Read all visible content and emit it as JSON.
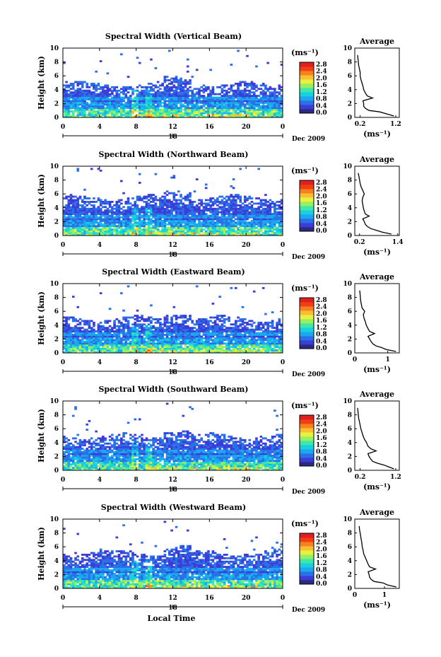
{
  "figure": {
    "date_label": "Dec 2009",
    "xlabel_bottom": "Local Time",
    "colorbar_unit": "(ms⁻¹)",
    "colorbar_ticks": [
      "0.0",
      "0.4",
      "0.8",
      "1.2",
      "1.6",
      "2.0",
      "2.4",
      "2.8"
    ],
    "colorbar_colors": [
      "#2a2a80",
      "#3c3cd8",
      "#2a70e6",
      "#1aa8f0",
      "#18d0e0",
      "#3ee8a8",
      "#98f060",
      "#e8f040",
      "#f8c030",
      "#f88020",
      "#f04010",
      "#e02020"
    ],
    "avg_title": "Average",
    "avg_xlabel": "(ms⁻¹)",
    "colors": {
      "background": "#ffffff",
      "low": "#3c3cd8",
      "mid": "#18d0e0",
      "high": "#f8c030"
    }
  },
  "chart_data": [
    {
      "type": "heatmap",
      "title": "Spectral Width (Vertical Beam)",
      "xlabel": "Local Time",
      "ylabel": "Height (km)",
      "xlim": [
        0,
        24
      ],
      "ylim": [
        0,
        10
      ],
      "xticks": [
        "0",
        "4",
        "8",
        "12",
        "16",
        "20",
        "0"
      ],
      "day_label": "18",
      "yticks": [
        "0",
        "2",
        "4",
        "6",
        "8",
        "10"
      ],
      "value_range": [
        0.0,
        2.8
      ],
      "echo_top_km": 4.8,
      "average_profile": {
        "xticks": [
          "0.2",
          "1.2"
        ],
        "xlim": [
          0.05,
          1.3
        ],
        "height_km": [
          0.2,
          0.5,
          0.8,
          1.0,
          1.3,
          1.6,
          2.0,
          2.4,
          2.8,
          3.1,
          3.5,
          4.0,
          4.5,
          5.0,
          5.5,
          6.0,
          6.5,
          7.0,
          7.5,
          8.0,
          8.5,
          9.0
        ],
        "width": [
          1.15,
          0.95,
          0.75,
          0.45,
          0.35,
          0.3,
          0.3,
          0.28,
          0.55,
          0.4,
          0.35,
          0.3,
          0.28,
          0.25,
          0.22,
          0.2,
          0.2,
          0.18,
          0.16,
          0.15,
          0.14,
          0.13
        ]
      }
    },
    {
      "type": "heatmap",
      "title": "Spectral Width (Northward Beam)",
      "xlabel": "Local Time",
      "ylabel": "Height (km)",
      "xlim": [
        0,
        24
      ],
      "ylim": [
        0,
        10
      ],
      "xticks": [
        "0",
        "4",
        "8",
        "12",
        "16",
        "20",
        "0"
      ],
      "day_label": "18",
      "yticks": [
        "0",
        "2",
        "4",
        "6",
        "8",
        "10"
      ],
      "value_range": [
        0.0,
        2.8
      ],
      "echo_top_km": 5.5,
      "average_profile": {
        "xticks": [
          "0.2",
          "1.4"
        ],
        "xlim": [
          0.05,
          1.45
        ],
        "height_km": [
          0.2,
          0.5,
          0.8,
          1.0,
          1.3,
          1.6,
          2.0,
          2.4,
          2.8,
          3.1,
          3.5,
          4.0,
          4.5,
          5.0,
          5.5,
          6.0,
          6.5,
          7.0,
          7.5,
          8.0,
          8.5,
          9.0
        ],
        "width": [
          1.2,
          0.9,
          0.7,
          0.55,
          0.45,
          0.38,
          0.35,
          0.3,
          0.5,
          0.38,
          0.35,
          0.32,
          0.3,
          0.28,
          0.3,
          0.35,
          0.3,
          0.25,
          0.22,
          0.2,
          0.18,
          0.16
        ]
      }
    },
    {
      "type": "heatmap",
      "title": "Spectral Width (Eastward Beam)",
      "xlabel": "Local Time",
      "ylabel": "Height (km)",
      "xlim": [
        0,
        24
      ],
      "ylim": [
        0,
        10
      ],
      "xticks": [
        "0",
        "4",
        "8",
        "12",
        "16",
        "20",
        "0"
      ],
      "day_label": "18",
      "yticks": [
        "0",
        "2",
        "4",
        "6",
        "8",
        "10"
      ],
      "value_range": [
        0.0,
        2.8
      ],
      "echo_top_km": 5.0,
      "average_profile": {
        "xticks": [
          "0",
          "1"
        ],
        "xlim": [
          0.0,
          1.35
        ],
        "height_km": [
          0.2,
          0.5,
          0.8,
          1.0,
          1.3,
          1.6,
          2.0,
          2.4,
          2.8,
          3.1,
          3.5,
          4.0,
          4.5,
          5.0,
          5.5,
          6.0,
          6.5,
          7.0,
          7.5,
          8.0,
          8.5,
          9.0
        ],
        "width": [
          1.25,
          0.95,
          0.8,
          0.65,
          0.55,
          0.5,
          0.45,
          0.4,
          0.6,
          0.45,
          0.4,
          0.35,
          0.32,
          0.28,
          0.26,
          0.3,
          0.22,
          0.2,
          0.18,
          0.17,
          0.16,
          0.15
        ]
      }
    },
    {
      "type": "heatmap",
      "title": "Spectral Width (Southward Beam)",
      "xlabel": "Local Time",
      "ylabel": "Height (km)",
      "xlim": [
        0,
        24
      ],
      "ylim": [
        0,
        10
      ],
      "xticks": [
        "0",
        "4",
        "8",
        "12",
        "16",
        "20",
        "0"
      ],
      "day_label": "18",
      "yticks": [
        "0",
        "2",
        "4",
        "6",
        "8",
        "10"
      ],
      "value_range": [
        0.0,
        2.8
      ],
      "echo_top_km": 5.0,
      "average_profile": {
        "xticks": [
          "0.2",
          "1.2"
        ],
        "xlim": [
          0.05,
          1.3
        ],
        "height_km": [
          0.2,
          0.5,
          0.8,
          1.0,
          1.3,
          1.6,
          2.0,
          2.4,
          2.8,
          3.1,
          3.5,
          4.0,
          4.5,
          5.0,
          5.5,
          6.0,
          6.5,
          7.0,
          7.5,
          8.0,
          8.5,
          9.0
        ],
        "width": [
          1.15,
          1.0,
          0.85,
          0.7,
          0.55,
          0.5,
          0.45,
          0.42,
          0.65,
          0.5,
          0.42,
          0.38,
          0.32,
          0.28,
          0.25,
          0.22,
          0.2,
          0.18,
          0.16,
          0.15,
          0.14,
          0.13
        ]
      }
    },
    {
      "type": "heatmap",
      "title": "Spectral Width (Westward Beam)",
      "xlabel": "Local Time",
      "ylabel": "Height (km)",
      "xlim": [
        0,
        24
      ],
      "ylim": [
        0,
        10
      ],
      "xticks": [
        "0",
        "4",
        "8",
        "12",
        "16",
        "20",
        "0"
      ],
      "day_label": "18",
      "yticks": [
        "0",
        "2",
        "4",
        "6",
        "8",
        "10"
      ],
      "value_range": [
        0.0,
        2.8
      ],
      "echo_top_km": 5.2,
      "average_profile": {
        "xticks": [
          "0",
          "1"
        ],
        "xlim": [
          0.0,
          1.5
        ],
        "height_km": [
          0.2,
          0.5,
          0.8,
          1.0,
          1.3,
          1.6,
          2.0,
          2.4,
          2.8,
          3.1,
          3.5,
          4.0,
          4.5,
          5.0,
          5.5,
          6.0,
          6.5,
          7.0,
          7.5,
          8.0,
          8.5,
          9.0
        ],
        "width": [
          1.4,
          1.1,
          0.95,
          0.65,
          0.55,
          0.5,
          0.48,
          0.45,
          0.7,
          0.5,
          0.45,
          0.4,
          0.35,
          0.3,
          0.28,
          0.25,
          0.24,
          0.22,
          0.2,
          0.18,
          0.16,
          0.15
        ]
      }
    }
  ]
}
